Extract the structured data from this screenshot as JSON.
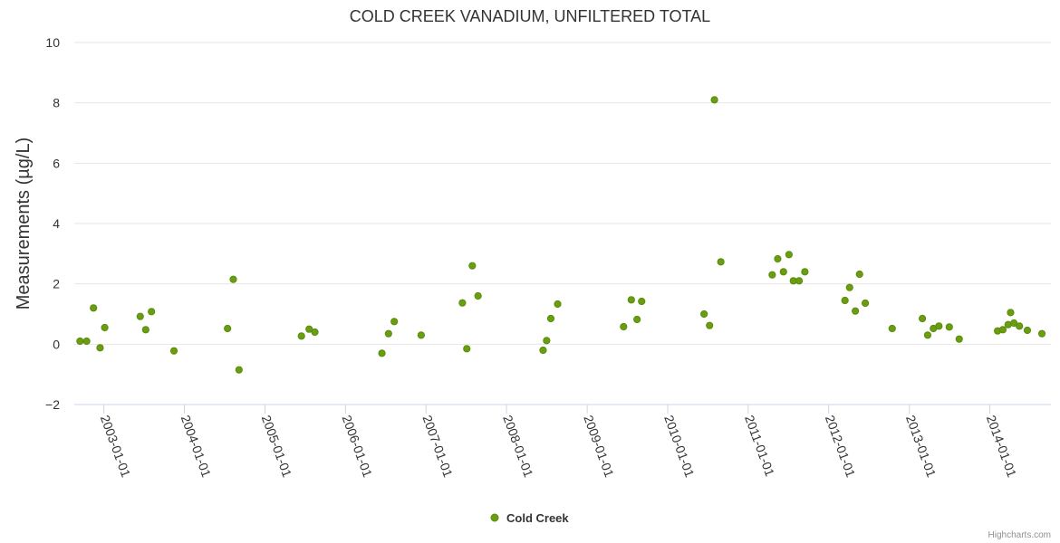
{
  "credits": "Highcharts.com",
  "colors": {
    "series": "#6b9e0e",
    "grid": "#e6e6e6",
    "axis": "#ccd6eb"
  },
  "chart_data": {
    "type": "scatter",
    "title": "COLD CREEK VANADIUM, UNFILTERED TOTAL",
    "xlabel": "",
    "ylabel": "Measurements (µg/L)",
    "xlim": [
      "2002-08-20",
      "2014-10-05"
    ],
    "ylim": [
      -2,
      10
    ],
    "yticks": [
      -2,
      0,
      2,
      4,
      6,
      8,
      10
    ],
    "xticks": [
      "2003-01-01",
      "2004-01-01",
      "2005-01-01",
      "2006-01-01",
      "2007-01-01",
      "2008-01-01",
      "2009-01-01",
      "2010-01-01",
      "2011-01-01",
      "2012-01-01",
      "2013-01-01",
      "2014-01-01"
    ],
    "grid": true,
    "legend_position": "bottom-center",
    "series": [
      {
        "name": "Cold Creek",
        "points": [
          [
            "2002-09-15",
            0.1
          ],
          [
            "2002-10-15",
            0.1
          ],
          [
            "2002-11-15",
            1.2
          ],
          [
            "2002-12-15",
            -0.12
          ],
          [
            "2003-01-05",
            0.55
          ],
          [
            "2003-06-15",
            0.92
          ],
          [
            "2003-07-10",
            0.48
          ],
          [
            "2003-08-05",
            1.08
          ],
          [
            "2003-11-15",
            -0.22
          ],
          [
            "2004-07-15",
            0.52
          ],
          [
            "2004-08-10",
            2.15
          ],
          [
            "2004-09-05",
            -0.85
          ],
          [
            "2005-06-15",
            0.27
          ],
          [
            "2005-07-20",
            0.5
          ],
          [
            "2005-08-15",
            0.4
          ],
          [
            "2006-06-15",
            -0.3
          ],
          [
            "2006-07-15",
            0.35
          ],
          [
            "2006-08-10",
            0.75
          ],
          [
            "2006-12-10",
            0.3
          ],
          [
            "2007-06-15",
            1.37
          ],
          [
            "2007-07-05",
            -0.15
          ],
          [
            "2007-07-30",
            2.6
          ],
          [
            "2007-08-25",
            1.6
          ],
          [
            "2008-06-15",
            -0.2
          ],
          [
            "2008-07-01",
            0.12
          ],
          [
            "2008-07-20",
            0.85
          ],
          [
            "2008-08-20",
            1.33
          ],
          [
            "2009-06-15",
            0.58
          ],
          [
            "2009-07-20",
            1.47
          ],
          [
            "2009-08-15",
            0.82
          ],
          [
            "2009-09-05",
            1.42
          ],
          [
            "2010-06-15",
            1.0
          ],
          [
            "2010-07-10",
            0.62
          ],
          [
            "2010-08-01",
            8.1
          ],
          [
            "2010-08-30",
            2.73
          ],
          [
            "2011-04-20",
            2.3
          ],
          [
            "2011-05-15",
            2.83
          ],
          [
            "2011-06-10",
            2.4
          ],
          [
            "2011-07-05",
            2.97
          ],
          [
            "2011-07-25",
            2.1
          ],
          [
            "2011-08-20",
            2.1
          ],
          [
            "2011-09-15",
            2.4
          ],
          [
            "2012-03-15",
            1.45
          ],
          [
            "2012-04-05",
            1.88
          ],
          [
            "2012-05-01",
            1.1
          ],
          [
            "2012-05-20",
            2.32
          ],
          [
            "2012-06-15",
            1.36
          ],
          [
            "2012-10-15",
            0.52
          ],
          [
            "2013-03-01",
            0.85
          ],
          [
            "2013-03-25",
            0.3
          ],
          [
            "2013-04-20",
            0.52
          ],
          [
            "2013-05-15",
            0.6
          ],
          [
            "2013-07-01",
            0.57
          ],
          [
            "2013-08-15",
            0.17
          ],
          [
            "2014-02-05",
            0.44
          ],
          [
            "2014-03-01",
            0.48
          ],
          [
            "2014-03-25",
            0.65
          ],
          [
            "2014-04-05",
            1.05
          ],
          [
            "2014-04-20",
            0.7
          ],
          [
            "2014-05-15",
            0.6
          ],
          [
            "2014-06-20",
            0.46
          ],
          [
            "2014-08-25",
            0.35
          ]
        ]
      }
    ]
  }
}
